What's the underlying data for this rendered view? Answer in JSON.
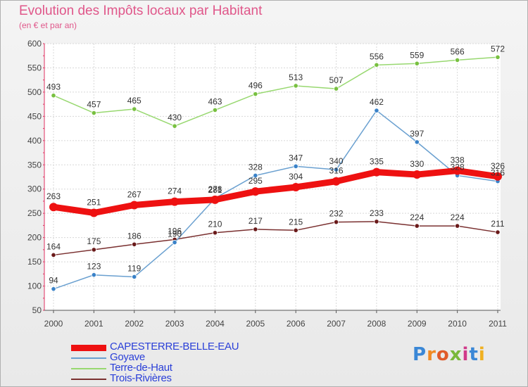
{
  "header": {
    "title": "Evolution des Impôts locaux par Habitant",
    "subtitle": "(en € et par an)"
  },
  "logo": {
    "letters": [
      "P",
      "r",
      "o",
      "x",
      "i",
      "t",
      "i"
    ],
    "colors": [
      "#3a87d6",
      "#f08a24",
      "#e05a2a",
      "#7ab83a",
      "#d03a8a",
      "#3a87d6",
      "#f0b020"
    ]
  },
  "chart_data": {
    "type": "line",
    "title": "Evolution des Impôts locaux par Habitant",
    "subtitle": "(en € et par an)",
    "xlabel": "",
    "ylabel": "",
    "x": [
      "2000",
      "2001",
      "2002",
      "2003",
      "2004",
      "2005",
      "2006",
      "2007",
      "2008",
      "2009",
      "2010",
      "2011"
    ],
    "ylim": [
      50,
      600
    ],
    "yticks": [
      50,
      100,
      150,
      200,
      250,
      300,
      350,
      400,
      450,
      500,
      550,
      600
    ],
    "grid": true,
    "legend_position": "bottom-left",
    "series": [
      {
        "name": "CAPESTERRE-BELLE-EAU",
        "color": "#ee1111",
        "marker": "#ee1111",
        "style": "thick",
        "values": [
          263,
          251,
          267,
          274,
          278,
          295,
          304,
          316,
          335,
          330,
          338,
          326
        ]
      },
      {
        "name": "Goyave",
        "color": "#6aa0d0",
        "marker": "#3a82c8",
        "style": "thin",
        "values": [
          94,
          123,
          119,
          190,
          281,
          328,
          347,
          340,
          462,
          397,
          328,
          316
        ]
      },
      {
        "name": "Terre-de-Haut",
        "color": "#98d870",
        "marker": "#78c040",
        "style": "thin",
        "values": [
          493,
          457,
          465,
          430,
          463,
          496,
          513,
          507,
          556,
          559,
          566,
          572
        ]
      },
      {
        "name": "Trois-Rivières",
        "color": "#7a3030",
        "marker": "#6a1a1a",
        "style": "thin",
        "values": [
          164,
          175,
          186,
          196,
          210,
          217,
          215,
          232,
          233,
          224,
          224,
          211
        ]
      }
    ]
  }
}
